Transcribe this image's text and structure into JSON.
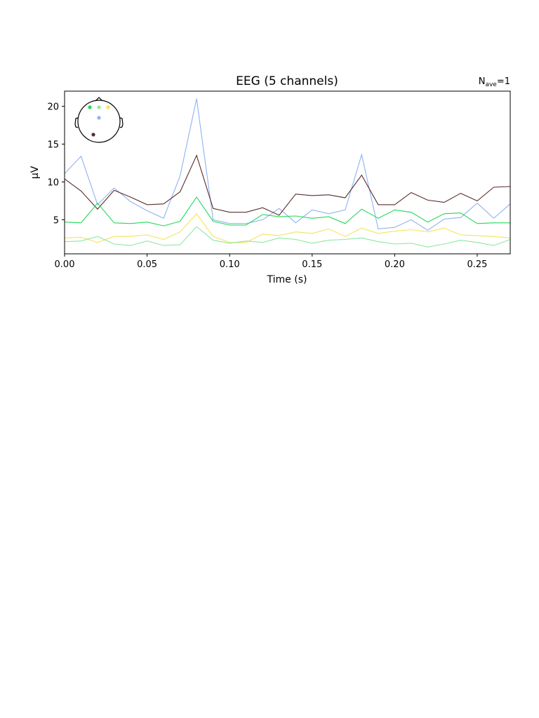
{
  "chart_data": {
    "type": "line",
    "title": "EEG (5 channels)",
    "nave": {
      "prefix": "N",
      "subscript": "ave",
      "suffix": "=1"
    },
    "xlabel": "Time (s)",
    "ylabel": "µV",
    "xlim": [
      0.0,
      0.27
    ],
    "ylim": [
      0.5,
      22
    ],
    "xticks": [
      {
        "value": 0.0,
        "label": "0.00"
      },
      {
        "value": 0.05,
        "label": "0.05"
      },
      {
        "value": 0.1,
        "label": "0.10"
      },
      {
        "value": 0.15,
        "label": "0.15"
      },
      {
        "value": 0.2,
        "label": "0.20"
      },
      {
        "value": 0.25,
        "label": "0.25"
      }
    ],
    "yticks": [
      {
        "value": 5,
        "label": "5"
      },
      {
        "value": 10,
        "label": "10"
      },
      {
        "value": 15,
        "label": "15"
      },
      {
        "value": 20,
        "label": "20"
      }
    ],
    "grid": false,
    "legend": "none",
    "inset": "sensor-head-map top-left",
    "x": [
      0.0,
      0.01,
      0.02,
      0.03,
      0.04,
      0.05,
      0.06,
      0.07,
      0.08,
      0.09,
      0.1,
      0.11,
      0.12,
      0.13,
      0.14,
      0.15,
      0.16,
      0.17,
      0.18,
      0.19,
      0.2,
      0.21,
      0.22,
      0.23,
      0.24,
      0.25,
      0.26,
      0.27
    ],
    "series": [
      {
        "color": "#8fb2f0",
        "values": [
          11.1,
          13.4,
          7.0,
          9.2,
          7.4,
          6.2,
          5.2,
          10.8,
          21.0,
          5.0,
          4.5,
          4.5,
          5.0,
          6.5,
          4.6,
          6.3,
          5.8,
          6.3,
          13.6,
          3.8,
          4.0,
          5.0,
          3.6,
          5.1,
          5.3,
          7.2,
          5.2,
          7.1
        ]
      },
      {
        "color": "#5a2b2b",
        "values": [
          10.4,
          8.8,
          6.4,
          8.9,
          8.0,
          7.0,
          7.1,
          8.7,
          13.5,
          6.5,
          6.0,
          6.0,
          6.6,
          5.6,
          8.4,
          8.2,
          8.3,
          7.9,
          10.9,
          7.0,
          7.0,
          8.6,
          7.6,
          7.3,
          8.5,
          7.5,
          9.3,
          9.4
        ]
      },
      {
        "color": "#22d95a",
        "values": [
          4.7,
          4.6,
          7.2,
          4.6,
          4.5,
          4.7,
          4.2,
          4.8,
          8.0,
          4.8,
          4.3,
          4.3,
          5.7,
          5.4,
          5.5,
          5.2,
          5.4,
          4.5,
          6.4,
          5.2,
          6.3,
          6.0,
          4.7,
          5.8,
          5.9,
          4.5,
          4.6,
          4.6
        ]
      },
      {
        "color": "#f5e35a",
        "values": [
          2.6,
          2.7,
          2.0,
          2.8,
          2.8,
          3.0,
          2.4,
          3.4,
          5.8,
          2.8,
          2.0,
          2.0,
          3.1,
          2.9,
          3.4,
          3.2,
          3.8,
          2.8,
          3.9,
          3.2,
          3.5,
          3.7,
          3.4,
          3.9,
          3.0,
          2.9,
          2.8,
          2.6
        ]
      },
      {
        "color": "#8ee8a0",
        "values": [
          2.1,
          2.2,
          2.8,
          1.8,
          1.6,
          2.2,
          1.6,
          1.7,
          4.1,
          2.3,
          1.9,
          2.2,
          2.0,
          2.6,
          2.4,
          1.9,
          2.3,
          2.4,
          2.6,
          2.1,
          1.8,
          1.9,
          1.4,
          1.8,
          2.3,
          2.0,
          1.6,
          2.4
        ]
      }
    ],
    "sensors": [
      {
        "color": "#22d95a"
      },
      {
        "color": "#8ee8a0"
      },
      {
        "color": "#f5e35a"
      },
      {
        "color": "#8fb2f0"
      },
      {
        "color": "#5a2b2b"
      }
    ]
  }
}
